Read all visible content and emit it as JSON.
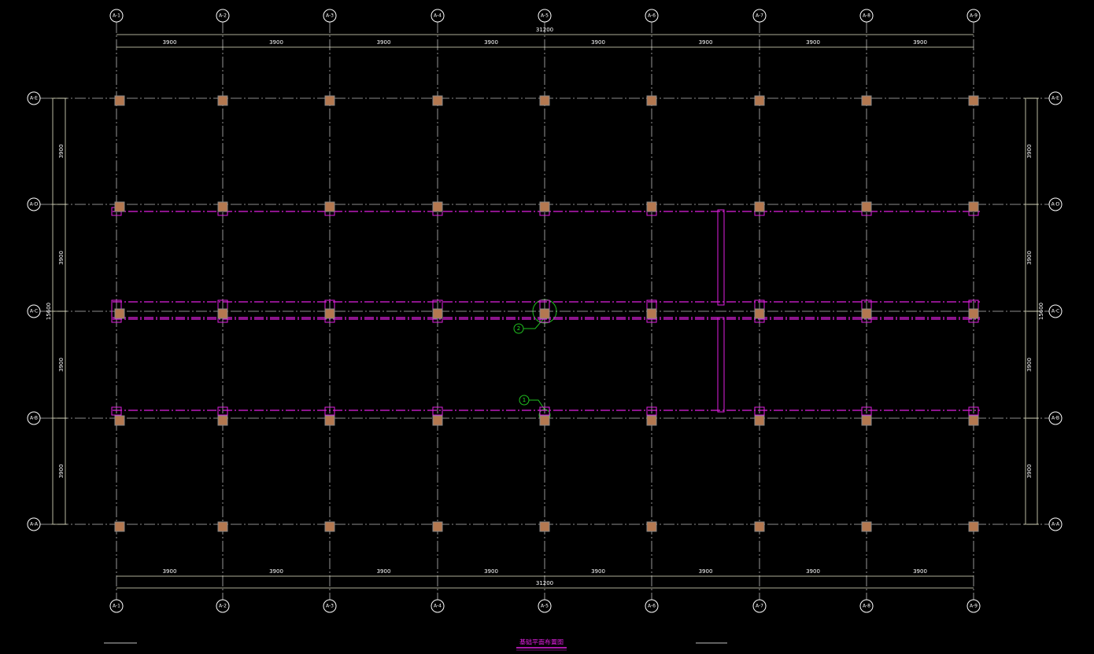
{
  "columns": [
    "A-1",
    "A-2",
    "A-3",
    "A-4",
    "A-5",
    "A-6",
    "A-7",
    "A-8",
    "A-9"
  ],
  "rows": [
    "A-E",
    "A-D",
    "A-C",
    "A-B",
    "A-A"
  ],
  "dimensions": {
    "top": {
      "spans": [
        "3900",
        "3900",
        "3900",
        "3900",
        "3900",
        "3900",
        "3900",
        "3900"
      ],
      "total": "31200"
    },
    "bottom": {
      "spans": [
        "3900",
        "3900",
        "3900",
        "3900",
        "3900",
        "3900",
        "3900",
        "3900"
      ],
      "total": "31200"
    },
    "left": {
      "spans": [
        "3900",
        "3900",
        "3900",
        "3900"
      ],
      "total": "15600"
    },
    "right": {
      "spans": [
        "3900",
        "3900",
        "3900",
        "3900"
      ],
      "total": "15600"
    }
  },
  "annotations": [
    "2",
    "1"
  ],
  "title": "基础平面布置图"
}
